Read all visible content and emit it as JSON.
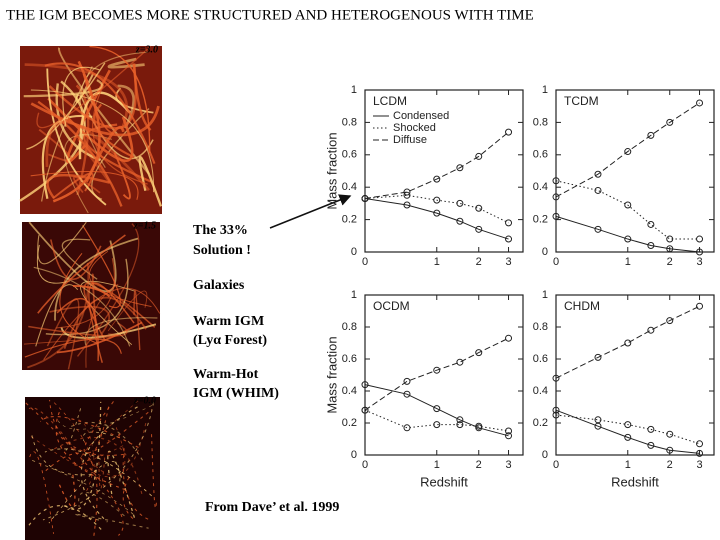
{
  "slide": {
    "title": "THE IGM BECOMES MORE STRUCTURED AND HETEROGENOUS WITH TIME",
    "images": [
      {
        "label": "z=3.0"
      },
      {
        "label": "z=1.5"
      },
      {
        "label": "z=0.0"
      }
    ],
    "annotations": [
      "The 33%",
      "Solution !",
      "Galaxies",
      "Warm IGM",
      "(Lyα Forest)",
      "Warm-Hot",
      "IGM (WHIM)"
    ],
    "source": "From Dave’ et al. 1999"
  },
  "chart_data": [
    {
      "type": "line",
      "title": "LCDM",
      "ylabel": "Mass fraction",
      "xscale": "log1p",
      "x": [
        0,
        0.5,
        1,
        1.5,
        2,
        3
      ],
      "xlim": [
        0,
        3.6
      ],
      "xticks": [
        0,
        1,
        2,
        3
      ],
      "ylim": [
        0,
        1
      ],
      "yticks": [
        0,
        0.2,
        0.4,
        0.6,
        0.8,
        1
      ],
      "legend": "upper left",
      "series": [
        {
          "name": "Condensed",
          "color": "#222222",
          "dash": "solid",
          "values": [
            0.33,
            0.29,
            0.24,
            0.19,
            0.14,
            0.08
          ]
        },
        {
          "name": "Shocked",
          "color": "#222222",
          "dash": "dotted",
          "values": [
            0.33,
            0.35,
            0.32,
            0.3,
            0.27,
            0.18
          ]
        },
        {
          "name": "Diffuse",
          "color": "#222222",
          "dash": "dashed",
          "values": [
            0.33,
            0.37,
            0.45,
            0.52,
            0.59,
            0.74
          ]
        }
      ]
    },
    {
      "type": "line",
      "title": "TCDM",
      "xscale": "log1p",
      "x": [
        0,
        0.5,
        1,
        1.5,
        2,
        3
      ],
      "xlim": [
        0,
        3.6
      ],
      "xticks": [
        0,
        1,
        2,
        3
      ],
      "ylim": [
        0,
        1
      ],
      "yticks": [
        0,
        0.2,
        0.4,
        0.6,
        0.8,
        1
      ],
      "series": [
        {
          "color": "#222222",
          "dash": "solid",
          "values": [
            0.22,
            0.14,
            0.08,
            0.04,
            0.02,
            0.0
          ]
        },
        {
          "color": "#222222",
          "dash": "dotted",
          "values": [
            0.44,
            0.38,
            0.29,
            0.17,
            0.08,
            0.08
          ]
        },
        {
          "color": "#222222",
          "dash": "dashed",
          "values": [
            0.34,
            0.48,
            0.62,
            0.72,
            0.8,
            0.92
          ]
        }
      ]
    },
    {
      "type": "line",
      "title": "OCDM",
      "ylabel": "Mass fraction",
      "xlabel": "Redshift",
      "xscale": "log1p",
      "x": [
        0,
        0.5,
        1,
        1.5,
        2,
        3
      ],
      "xlim": [
        0,
        3.6
      ],
      "xticks": [
        0,
        1,
        2,
        3
      ],
      "ylim": [
        0,
        1
      ],
      "yticks": [
        0,
        0.2,
        0.4,
        0.6,
        0.8,
        1
      ],
      "series": [
        {
          "color": "#222222",
          "dash": "solid",
          "values": [
            0.44,
            0.38,
            0.29,
            0.22,
            0.17,
            0.12
          ]
        },
        {
          "color": "#222222",
          "dash": "dotted",
          "values": [
            0.28,
            0.17,
            0.19,
            0.19,
            0.18,
            0.15
          ]
        },
        {
          "color": "#222222",
          "dash": "dashed",
          "values": [
            0.28,
            0.46,
            0.53,
            0.58,
            0.64,
            0.73
          ]
        }
      ]
    },
    {
      "type": "line",
      "title": "CHDM",
      "xlabel": "Redshift",
      "xscale": "log1p",
      "x": [
        0,
        0.5,
        1,
        1.5,
        2,
        3
      ],
      "xlim": [
        0,
        3.6
      ],
      "xticks": [
        0,
        1,
        2,
        3
      ],
      "ylim": [
        0,
        1
      ],
      "yticks": [
        0,
        0.2,
        0.4,
        0.6,
        0.8,
        1
      ],
      "series": [
        {
          "color": "#222222",
          "dash": "solid",
          "values": [
            0.28,
            0.18,
            0.11,
            0.06,
            0.03,
            0.01
          ]
        },
        {
          "color": "#222222",
          "dash": "dotted",
          "values": [
            0.25,
            0.22,
            0.19,
            0.16,
            0.13,
            0.07
          ]
        },
        {
          "color": "#222222",
          "dash": "dashed",
          "values": [
            0.48,
            0.61,
            0.7,
            0.78,
            0.84,
            0.93
          ]
        }
      ]
    }
  ]
}
